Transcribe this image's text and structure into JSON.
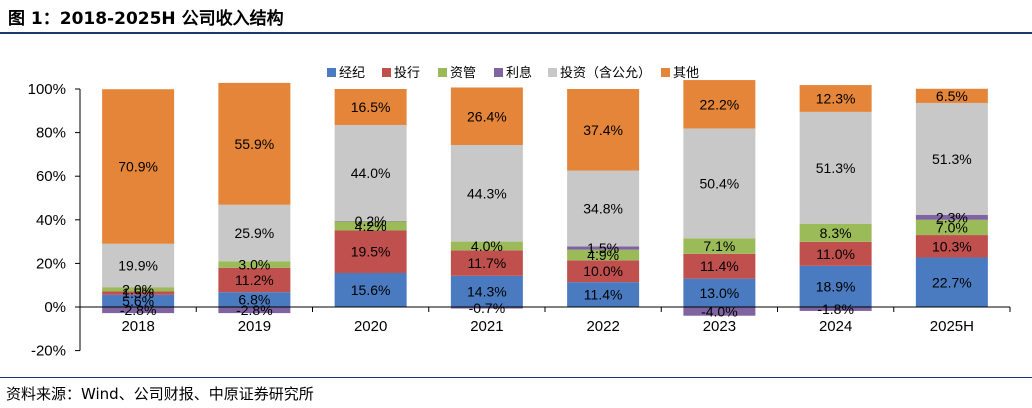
{
  "header": {
    "title": "图 1：2018-2025H 公司收入结构"
  },
  "footer": {
    "source": "资料来源：Wind、公司财报、中原证券研究所"
  },
  "chart_data": {
    "type": "bar",
    "stacked": true,
    "title": "",
    "xlabel": "",
    "ylabel": "",
    "ylim": [
      -20,
      100
    ],
    "yticks": [
      "-20%",
      "0%",
      "20%",
      "40%",
      "60%",
      "80%",
      "100%"
    ],
    "grid": false,
    "legend_position": "top",
    "categories": [
      "2018",
      "2019",
      "2020",
      "2021",
      "2022",
      "2023",
      "2024",
      "2025H"
    ],
    "series": [
      {
        "name": "经纪",
        "color": "#4a7bc0",
        "values": [
          5.6,
          6.8,
          15.6,
          14.3,
          11.4,
          13.0,
          18.9,
          22.7
        ],
        "labels": [
          "5.6%",
          "6.8%",
          "15.6%",
          "14.3%",
          "11.4%",
          "13.0%",
          "18.9%",
          "22.7%"
        ]
      },
      {
        "name": "投行",
        "color": "#c0504d",
        "values": [
          1.5,
          11.2,
          19.5,
          11.7,
          10.0,
          11.4,
          11.0,
          10.3
        ],
        "labels": [
          "1.5%",
          "11.2%",
          "19.5%",
          "11.7%",
          "10.0%",
          "11.4%",
          "11.0%",
          "10.3%"
        ]
      },
      {
        "name": "资管",
        "color": "#9bbb59",
        "values": [
          2.0,
          3.0,
          4.2,
          4.0,
          4.9,
          7.1,
          8.3,
          7.0
        ],
        "labels": [
          "2.0%",
          "3.0%",
          "4.2%",
          "4.0%",
          "4.9%",
          "7.1%",
          "8.3%",
          "7.0%"
        ]
      },
      {
        "name": "利息",
        "color": "#8064a2",
        "values": [
          -2.8,
          -2.8,
          0.2,
          -0.7,
          1.5,
          -4.0,
          -1.8,
          2.3
        ],
        "labels": [
          "-2.8%",
          "-2.8%",
          "0.2%",
          "-0.7%",
          "1.5%",
          "-4.0%",
          "-1.8%",
          "2.3%"
        ]
      },
      {
        "name": "投资（含公允）",
        "color": "#c8c8c8",
        "values": [
          19.9,
          25.9,
          44.0,
          44.3,
          34.8,
          50.4,
          51.3,
          51.3
        ],
        "labels": [
          "19.9%",
          "25.9%",
          "44.0%",
          "44.3%",
          "34.8%",
          "50.4%",
          "51.3%",
          "51.3%"
        ]
      },
      {
        "name": "其他",
        "color": "#e4853a",
        "values": [
          70.9,
          55.9,
          16.5,
          26.4,
          37.4,
          22.2,
          12.3,
          6.5
        ],
        "labels": [
          "70.9%",
          "55.9%",
          "16.5%",
          "26.4%",
          "37.4%",
          "22.2%",
          "12.3%",
          "6.5%"
        ]
      }
    ]
  }
}
